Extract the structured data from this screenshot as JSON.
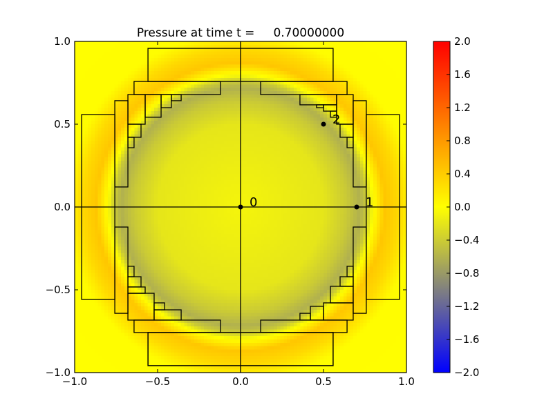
{
  "chart_data": {
    "type": "heatmap",
    "title": "Pressure at time t =     0.70000000",
    "xlim": [
      -1.0,
      1.0
    ],
    "ylim": [
      -1.0,
      1.0
    ],
    "xticks": [
      -1.0,
      -0.5,
      0.0,
      0.5,
      1.0
    ],
    "xtick_labels": [
      "−1.0",
      "−0.5",
      "0.0",
      "0.5",
      "1.0"
    ],
    "yticks": [
      -1.0,
      -0.5,
      0.0,
      0.5,
      1.0
    ],
    "ytick_labels": [
      "−1.0",
      "−0.5",
      "0.0",
      "0.5",
      "1.0"
    ],
    "colorbar": {
      "range": [
        -2.0,
        2.0
      ],
      "ticks": [
        2.0,
        1.6,
        1.2,
        0.8,
        0.4,
        0.0,
        -0.4,
        -0.8,
        -1.2,
        -1.6,
        -2.0
      ],
      "tick_labels": [
        "2.0",
        "1.6",
        "1.2",
        "0.8",
        "0.4",
        "0.0",
        "−0.4",
        "−0.8",
        "−1.2",
        "−1.6",
        "−2.0"
      ],
      "colormap": [
        [
          -2.0,
          "#0000ff"
        ],
        [
          -1.0,
          "#808080"
        ],
        [
          0.0,
          "#ffff00"
        ],
        [
          1.0,
          "#ff8000"
        ],
        [
          2.0,
          "#ff0000"
        ]
      ]
    },
    "radial_profile": [
      [
        0.0,
        -0.08
      ],
      [
        0.5,
        -0.2
      ],
      [
        0.64,
        -0.42
      ],
      [
        0.72,
        -0.62
      ],
      [
        0.76,
        -0.42
      ],
      [
        0.8,
        0.0
      ],
      [
        0.87,
        0.45
      ],
      [
        0.95,
        0.3
      ],
      [
        1.05,
        0.02
      ],
      [
        1.5,
        0.0
      ]
    ],
    "axis_lines": {
      "x": [
        0.0
      ],
      "y": [
        0.0
      ]
    },
    "patches": [
      [
        -0.558,
        0.558,
        0.758,
        0.958
      ],
      [
        -0.642,
        -0.121,
        0.679,
        0.758
      ],
      [
        0.121,
        0.642,
        0.679,
        0.758
      ],
      [
        -0.679,
        -0.575,
        0.5,
        0.679
      ],
      [
        -0.575,
        -0.479,
        0.542,
        0.679
      ],
      [
        -0.479,
        -0.417,
        0.6,
        0.679
      ],
      [
        -0.417,
        -0.358,
        0.642,
        0.679
      ],
      [
        -0.679,
        -0.6,
        0.421,
        0.5
      ],
      [
        -0.679,
        -0.642,
        0.358,
        0.421
      ],
      [
        -0.758,
        -0.679,
        0.121,
        0.642
      ],
      [
        -0.958,
        -0.758,
        -0.558,
        0.558
      ],
      [
        0.358,
        0.579,
        0.617,
        0.679
      ],
      [
        0.579,
        0.679,
        0.5,
        0.679
      ],
      [
        0.458,
        0.5,
        0.6,
        0.617
      ],
      [
        0.5,
        0.579,
        0.579,
        0.617
      ],
      [
        0.542,
        0.579,
        0.542,
        0.579
      ],
      [
        0.6,
        0.679,
        0.421,
        0.5
      ],
      [
        0.642,
        0.679,
        0.358,
        0.421
      ],
      [
        0.679,
        0.758,
        0.121,
        0.642
      ],
      [
        0.758,
        0.958,
        -0.558,
        0.558
      ],
      [
        -0.758,
        -0.679,
        -0.642,
        -0.121
      ],
      [
        -0.679,
        -0.642,
        -0.421,
        -0.358
      ],
      [
        -0.679,
        -0.6,
        -0.483,
        -0.421
      ],
      [
        -0.679,
        -0.575,
        -0.521,
        -0.483
      ],
      [
        -0.679,
        -0.521,
        -0.683,
        -0.521
      ],
      [
        -0.521,
        -0.458,
        -0.621,
        -0.579
      ],
      [
        -0.521,
        -0.358,
        -0.683,
        -0.621
      ],
      [
        -0.642,
        -0.121,
        -0.758,
        -0.683
      ],
      [
        -0.558,
        0.558,
        -0.958,
        -0.758
      ],
      [
        0.679,
        0.758,
        -0.642,
        -0.121
      ],
      [
        0.642,
        0.679,
        -0.421,
        -0.358
      ],
      [
        0.6,
        0.679,
        -0.479,
        -0.421
      ],
      [
        0.542,
        0.679,
        -0.579,
        -0.479
      ],
      [
        0.5,
        0.679,
        -0.683,
        -0.579
      ],
      [
        0.421,
        0.5,
        -0.683,
        -0.6
      ],
      [
        0.358,
        0.421,
        -0.683,
        -0.642
      ],
      [
        0.121,
        0.642,
        -0.758,
        -0.683
      ],
      [
        -0.558,
        0.558,
        -0.958,
        -0.758
      ]
    ],
    "gauges": [
      {
        "label": "0",
        "x": 0.0,
        "y": 0.0
      },
      {
        "label": "1",
        "x": 0.7,
        "y": 0.0
      },
      {
        "label": "2",
        "x": 0.5,
        "y": 0.5
      }
    ]
  }
}
